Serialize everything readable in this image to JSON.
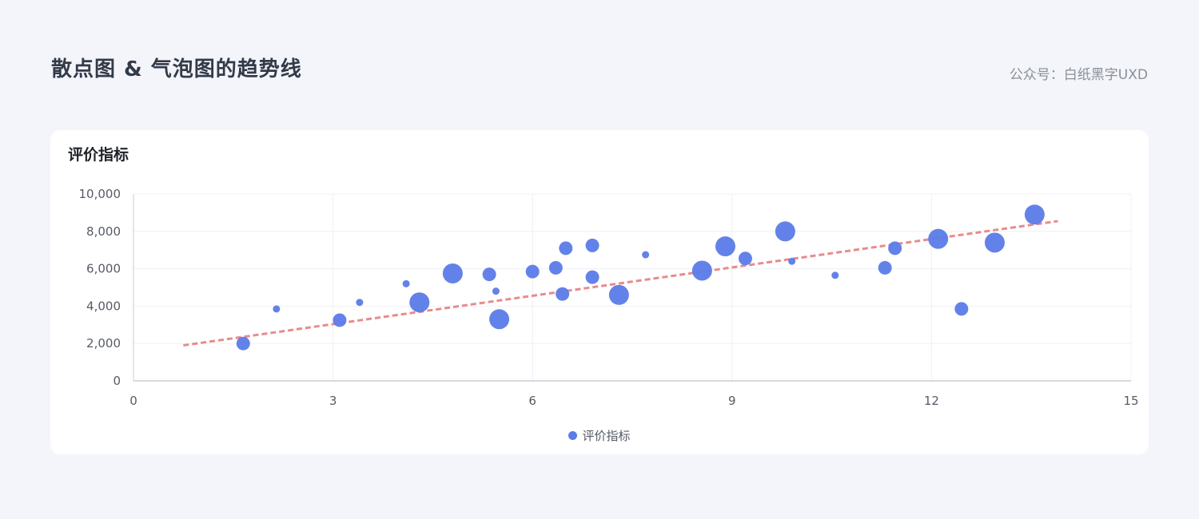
{
  "header": {
    "title": "散点图 & 气泡图的趋势线",
    "credit": "公众号：白纸黑字UXD"
  },
  "card": {
    "title": "评价指标"
  },
  "chart_data": {
    "type": "scatter",
    "title": "评价指标",
    "xlabel": "",
    "ylabel": "",
    "xlim": [
      0,
      15
    ],
    "ylim": [
      0,
      10000
    ],
    "x_ticks": [
      0,
      3,
      6,
      9,
      12,
      15
    ],
    "x_tick_labels": [
      "0",
      "3",
      "6",
      "9",
      "12",
      "15"
    ],
    "y_ticks": [
      0,
      2000,
      4000,
      6000,
      8000,
      10000
    ],
    "y_tick_labels": [
      "0",
      "2,000",
      "4,000",
      "6,000",
      "8,000",
      "10,000"
    ],
    "grid": true,
    "legend_position": "bottom",
    "colors": {
      "series": "#5b7be8",
      "trendline": "#e88b8b",
      "grid": "#eef0f4",
      "axis": "#c9cdd4",
      "tick_label": "#555b66"
    },
    "series": [
      {
        "name": "评价指标",
        "points": [
          {
            "x": 1.65,
            "y": 2000,
            "size": 2
          },
          {
            "x": 2.15,
            "y": 3850,
            "size": 1
          },
          {
            "x": 3.1,
            "y": 3250,
            "size": 2
          },
          {
            "x": 3.4,
            "y": 4200,
            "size": 1
          },
          {
            "x": 4.1,
            "y": 5200,
            "size": 1
          },
          {
            "x": 4.3,
            "y": 4200,
            "size": 3
          },
          {
            "x": 4.8,
            "y": 5750,
            "size": 3
          },
          {
            "x": 5.35,
            "y": 5700,
            "size": 2
          },
          {
            "x": 5.45,
            "y": 4800,
            "size": 1
          },
          {
            "x": 5.5,
            "y": 3300,
            "size": 3
          },
          {
            "x": 6.0,
            "y": 5850,
            "size": 2
          },
          {
            "x": 6.35,
            "y": 6050,
            "size": 2
          },
          {
            "x": 6.45,
            "y": 4650,
            "size": 2
          },
          {
            "x": 6.5,
            "y": 7100,
            "size": 2
          },
          {
            "x": 6.9,
            "y": 7250,
            "size": 2
          },
          {
            "x": 6.9,
            "y": 5550,
            "size": 2
          },
          {
            "x": 7.3,
            "y": 4600,
            "size": 3
          },
          {
            "x": 7.7,
            "y": 6750,
            "size": 1
          },
          {
            "x": 8.55,
            "y": 5900,
            "size": 3
          },
          {
            "x": 8.9,
            "y": 7200,
            "size": 3
          },
          {
            "x": 9.2,
            "y": 6550,
            "size": 2
          },
          {
            "x": 9.8,
            "y": 8000,
            "size": 3
          },
          {
            "x": 9.9,
            "y": 6400,
            "size": 1
          },
          {
            "x": 10.55,
            "y": 5650,
            "size": 1
          },
          {
            "x": 11.3,
            "y": 6050,
            "size": 2
          },
          {
            "x": 11.45,
            "y": 7100,
            "size": 2
          },
          {
            "x": 12.1,
            "y": 7600,
            "size": 3
          },
          {
            "x": 12.45,
            "y": 3850,
            "size": 2
          },
          {
            "x": 12.95,
            "y": 7400,
            "size": 3
          },
          {
            "x": 13.55,
            "y": 8900,
            "size": 3
          }
        ]
      }
    ],
    "trendline": {
      "style": "dashed",
      "x": [
        0.75,
        13.9
      ],
      "y": [
        1900,
        8550
      ]
    }
  }
}
